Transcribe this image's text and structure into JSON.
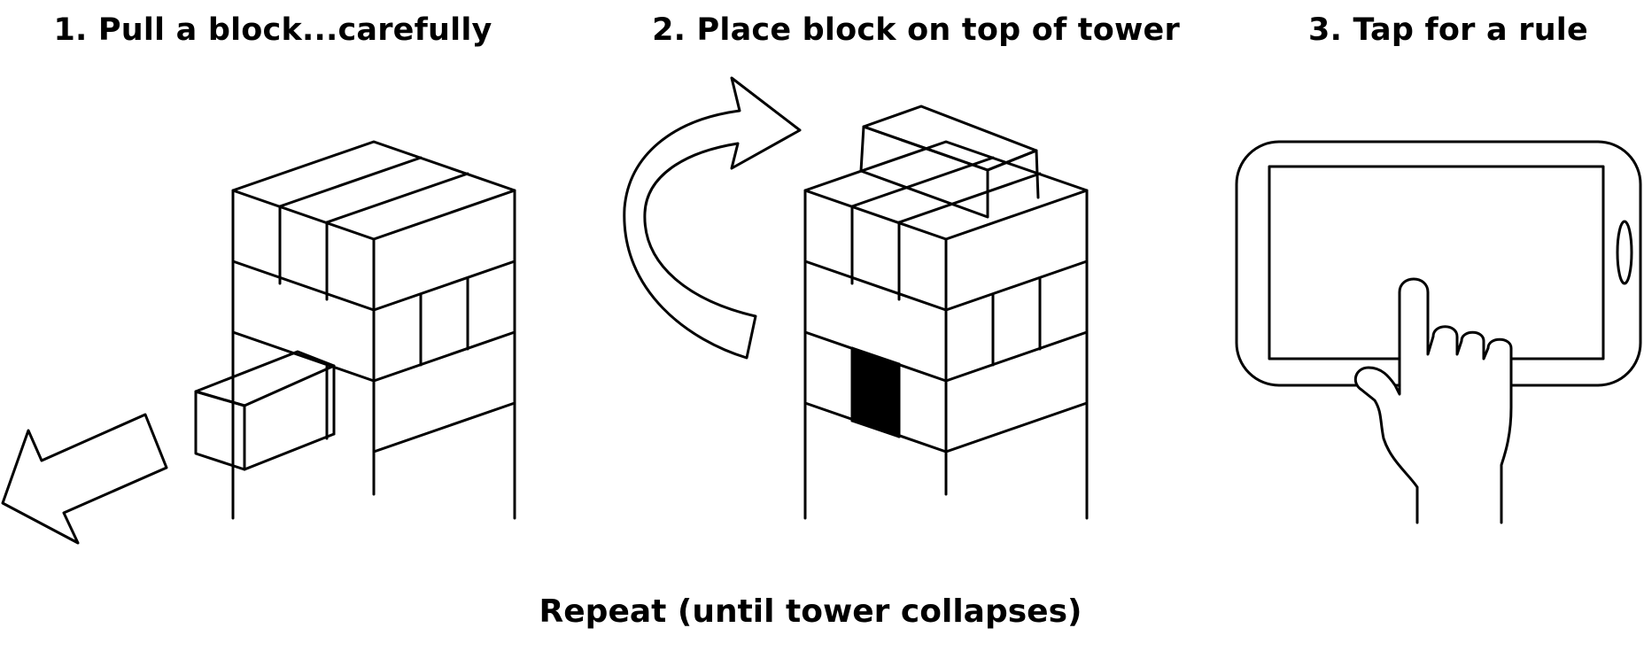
{
  "steps": [
    {
      "title": "1. Pull a block...carefully"
    },
    {
      "title": "2. Place block on top of tower"
    },
    {
      "title": "3. Tap for a rule"
    }
  ],
  "footer": "Repeat (until tower collapses)",
  "colors": {
    "line": "#000000",
    "background": "#ffffff",
    "removed_block": "#000000"
  }
}
